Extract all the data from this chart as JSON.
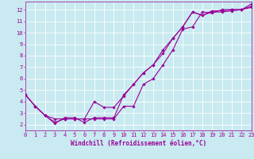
{
  "xlabel": "Windchill (Refroidissement éolien,°C)",
  "line_color": "#990099",
  "bg_color": "#c8eaf0",
  "grid_color": "#ffffff",
  "x_min": 0,
  "x_max": 23,
  "y_min": 1.5,
  "y_max": 12.7,
  "line1_x": [
    0,
    1,
    2,
    3,
    4,
    5,
    6,
    7,
    8,
    9,
    10,
    11,
    12,
    13,
    14,
    15,
    16,
    17,
    18,
    19,
    20,
    21,
    22,
    23
  ],
  "line1_y": [
    4.6,
    3.6,
    2.8,
    2.5,
    2.5,
    2.5,
    2.5,
    2.5,
    2.5,
    2.5,
    3.6,
    3.6,
    5.5,
    6.0,
    7.2,
    8.5,
    10.3,
    10.5,
    11.8,
    11.7,
    12.0,
    12.0,
    12.0,
    12.3
  ],
  "line2_x": [
    0,
    1,
    2,
    3,
    4,
    5,
    6,
    7,
    8,
    9,
    10,
    11,
    12,
    13,
    14,
    15,
    16,
    17,
    18,
    19,
    20,
    21,
    22,
    23
  ],
  "line2_y": [
    4.6,
    3.6,
    2.8,
    2.2,
    2.5,
    2.5,
    2.5,
    4.0,
    3.5,
    3.5,
    4.5,
    5.5,
    6.5,
    7.2,
    8.5,
    9.5,
    10.5,
    11.8,
    11.5,
    11.9,
    11.9,
    12.0,
    12.0,
    12.5
  ],
  "line3_x": [
    0,
    1,
    2,
    3,
    4,
    5,
    6,
    7,
    8,
    9,
    10,
    11,
    12,
    13,
    14,
    15,
    16,
    17,
    18,
    19,
    20,
    21,
    22,
    23
  ],
  "line3_y": [
    4.6,
    3.6,
    2.8,
    2.1,
    2.6,
    2.6,
    2.2,
    2.6,
    2.6,
    2.6,
    4.6,
    5.5,
    6.5,
    7.2,
    8.2,
    9.5,
    10.5,
    11.8,
    11.5,
    11.8,
    11.8,
    11.9,
    12.0,
    12.2
  ],
  "yticks": [
    2,
    3,
    4,
    5,
    6,
    7,
    8,
    9,
    10,
    11,
    12
  ],
  "xticks": [
    0,
    1,
    2,
    3,
    4,
    5,
    6,
    7,
    8,
    9,
    10,
    11,
    12,
    13,
    14,
    15,
    16,
    17,
    18,
    19,
    20,
    21,
    22,
    23
  ],
  "tick_fontsize": 5.0,
  "label_fontsize": 5.5,
  "marker": "D",
  "marker_size": 1.8,
  "linewidth": 0.8
}
